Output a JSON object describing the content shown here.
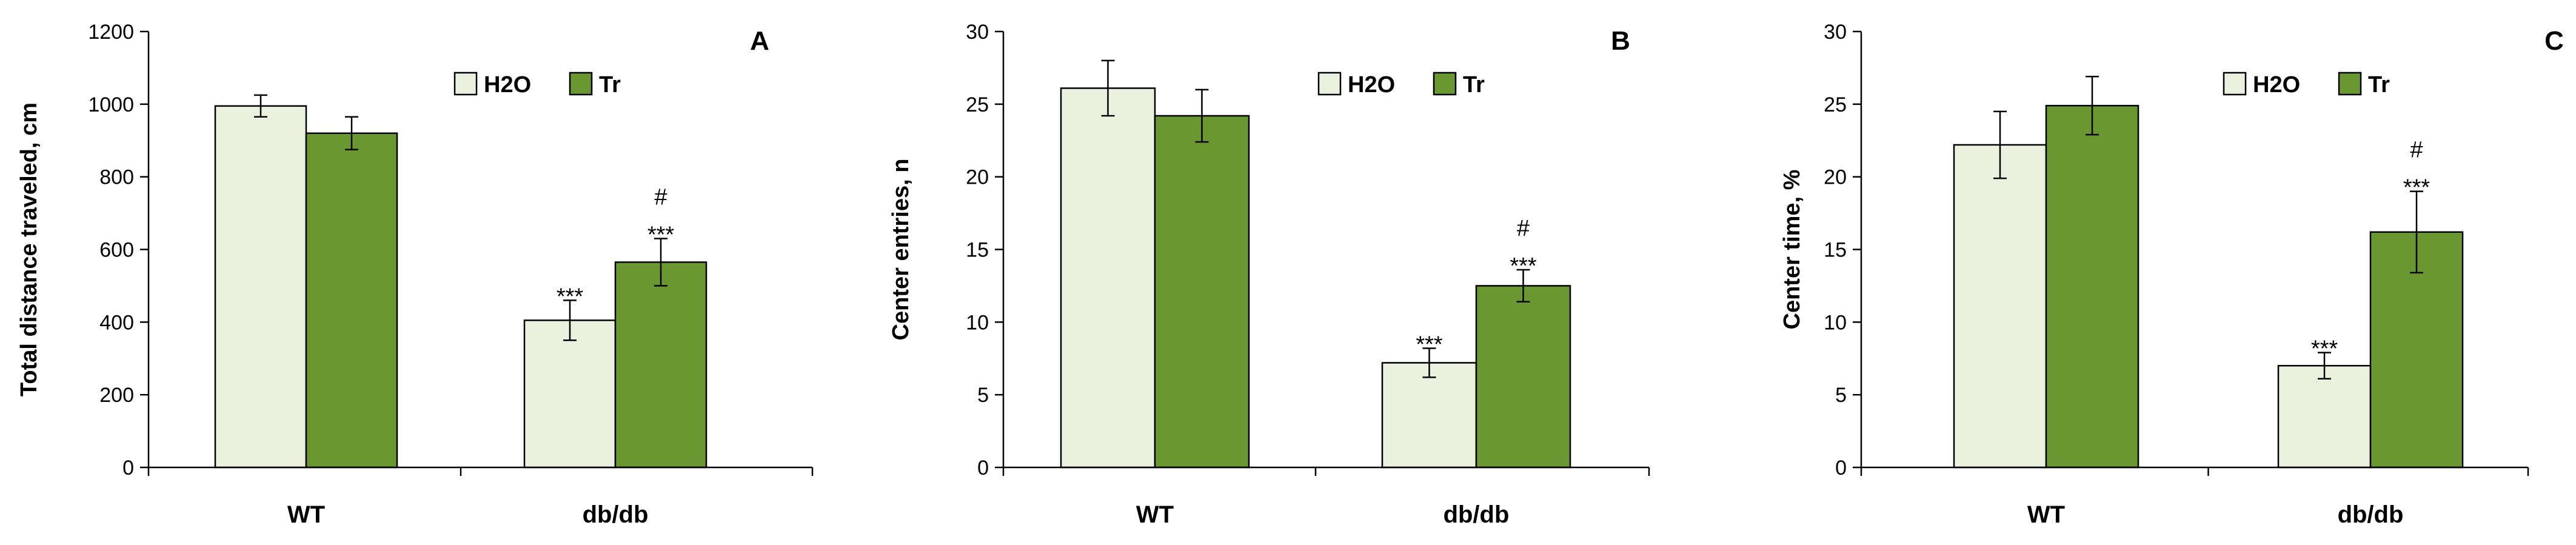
{
  "colors": {
    "h2o_fill": "#ebf1de",
    "tr_fill": "#6b9732",
    "bar_stroke": "#000000",
    "axis": "#000000"
  },
  "chart_data": [
    {
      "type": "bar",
      "panel_label": "A",
      "ylabel": "Total distance traveled, cm",
      "ylim": [
        0,
        1200
      ],
      "yticks": [
        0,
        200,
        400,
        600,
        800,
        1000,
        1200
      ],
      "categories": [
        "WT",
        "db/db"
      ],
      "series": [
        {
          "name": "H2O",
          "values": [
            995,
            405
          ],
          "errors": [
            30,
            55
          ]
        },
        {
          "name": "Tr",
          "values": [
            920,
            565
          ],
          "errors": [
            45,
            65
          ]
        }
      ],
      "annotations": [
        {
          "series": 0,
          "category": 1,
          "lines": [
            "***"
          ]
        },
        {
          "series": 1,
          "category": 1,
          "lines": [
            "#",
            "***"
          ]
        }
      ],
      "legend": "top-right",
      "grid": false
    },
    {
      "type": "bar",
      "panel_label": "B",
      "ylabel": "Center entries, n",
      "ylim": [
        0,
        30
      ],
      "yticks": [
        0,
        5,
        10,
        15,
        20,
        25,
        30
      ],
      "categories": [
        "WT",
        "db/db"
      ],
      "series": [
        {
          "name": "H2O",
          "values": [
            26.1,
            7.2
          ],
          "errors": [
            1.9,
            1.0
          ]
        },
        {
          "name": "Tr",
          "values": [
            24.2,
            12.5
          ],
          "errors": [
            1.8,
            1.1
          ]
        }
      ],
      "annotations": [
        {
          "series": 0,
          "category": 1,
          "lines": [
            "***"
          ]
        },
        {
          "series": 1,
          "category": 1,
          "lines": [
            "#",
            "***"
          ]
        }
      ],
      "legend": "top-right",
      "grid": false
    },
    {
      "type": "bar",
      "panel_label": "C",
      "ylabel": "Center time, %",
      "ylim": [
        0,
        30
      ],
      "yticks": [
        0,
        5,
        10,
        15,
        20,
        25,
        30
      ],
      "categories": [
        "WT",
        "db/db"
      ],
      "series": [
        {
          "name": "H2O",
          "values": [
            22.2,
            7.0
          ],
          "errors": [
            2.3,
            0.9
          ]
        },
        {
          "name": "Tr",
          "values": [
            24.9,
            16.2
          ],
          "errors": [
            2.0,
            2.8
          ]
        }
      ],
      "annotations": [
        {
          "series": 0,
          "category": 1,
          "lines": [
            "***"
          ]
        },
        {
          "series": 1,
          "category": 1,
          "lines": [
            "#",
            "***"
          ]
        }
      ],
      "legend": "top-right",
      "grid": false
    }
  ]
}
